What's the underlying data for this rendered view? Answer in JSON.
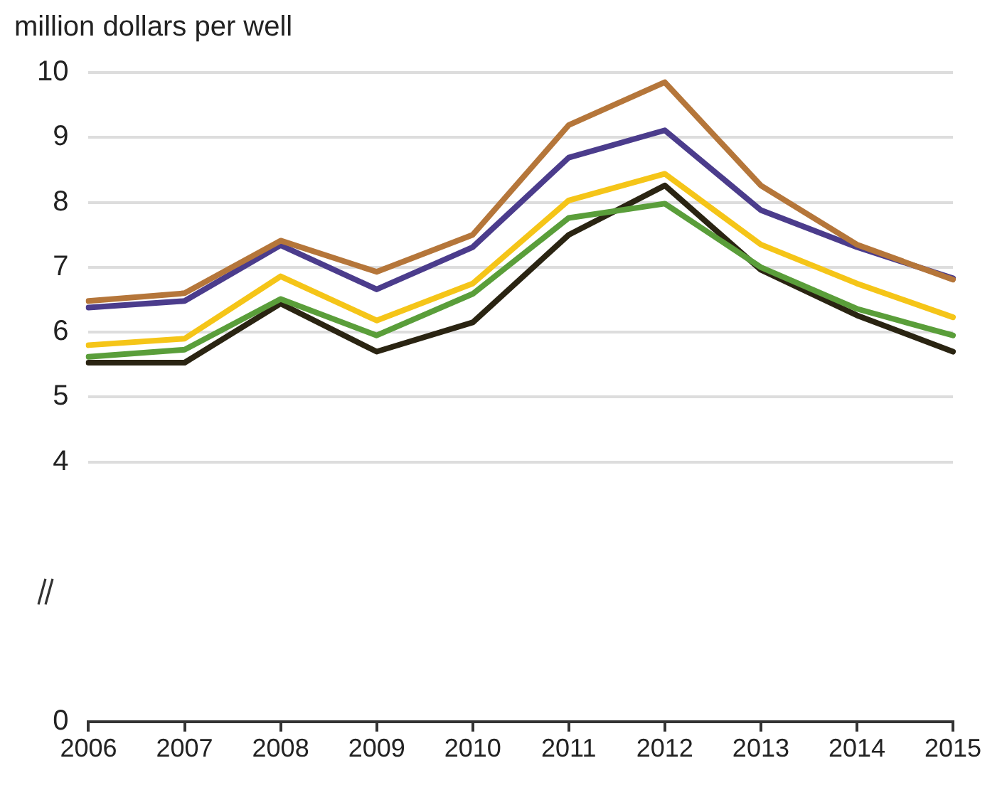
{
  "chart_data": {
    "type": "line",
    "ylabel": "million dollars per well",
    "categories": [
      "2006",
      "2007",
      "2008",
      "2009",
      "2010",
      "2011",
      "2012",
      "2013",
      "2014",
      "2015"
    ],
    "series": [
      {
        "color": "#b5763a",
        "values": [
          6.48,
          6.6,
          7.41,
          6.93,
          7.5,
          9.19,
          9.85,
          8.26,
          7.35,
          6.81
        ]
      },
      {
        "color": "#4b3c8c",
        "values": [
          6.38,
          6.48,
          7.34,
          6.66,
          7.31,
          8.69,
          9.11,
          7.88,
          7.31,
          6.83
        ]
      },
      {
        "color": "#f5c518",
        "values": [
          5.8,
          5.9,
          6.86,
          6.18,
          6.75,
          8.03,
          8.44,
          7.35,
          6.75,
          6.23
        ]
      },
      {
        "color": "#5a9e3a",
        "values": [
          5.62,
          5.73,
          6.51,
          5.95,
          6.59,
          7.76,
          7.98,
          7.0,
          6.36,
          5.95
        ]
      },
      {
        "color": "#2a2412",
        "values": [
          5.53,
          5.53,
          6.44,
          5.7,
          6.15,
          7.5,
          8.26,
          6.96,
          6.26,
          5.7
        ]
      }
    ],
    "ylim": [
      0,
      10
    ],
    "yticks": [
      0,
      4,
      5,
      6,
      7,
      8,
      9,
      10
    ],
    "grid": "y",
    "legend": false,
    "marker": "none",
    "line_style": "solid"
  }
}
